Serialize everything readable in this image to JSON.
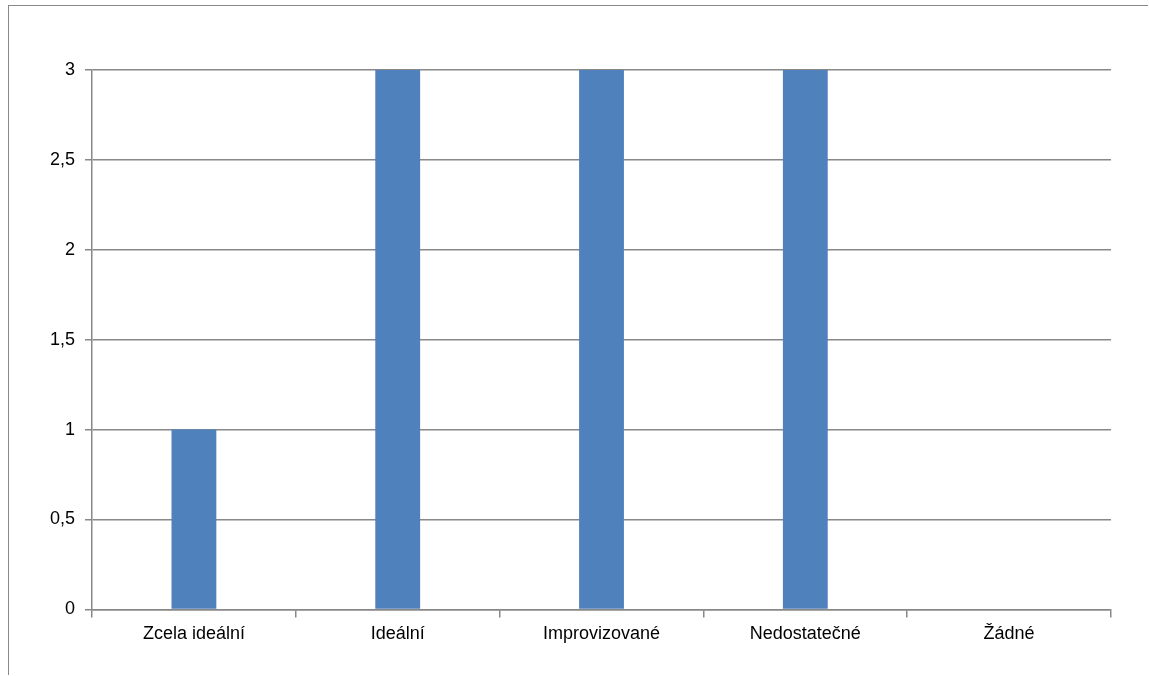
{
  "chart_data": {
    "type": "bar",
    "categories": [
      "Zcela ideální",
      "Ideální",
      "Improvizované",
      "Nedostatečné",
      "Žádné"
    ],
    "values": [
      1,
      3,
      3,
      3,
      0
    ],
    "color": "#4f81bd",
    "ylim": [
      0,
      3
    ],
    "yticks": [
      0,
      {
        "value": 0.5,
        "label": "0,5"
      },
      1,
      {
        "value": 1.5,
        "label": "1,5"
      },
      2,
      {
        "value": 2.5,
        "label": "2,5"
      },
      3
    ],
    "grid": "y",
    "legend": false
  }
}
